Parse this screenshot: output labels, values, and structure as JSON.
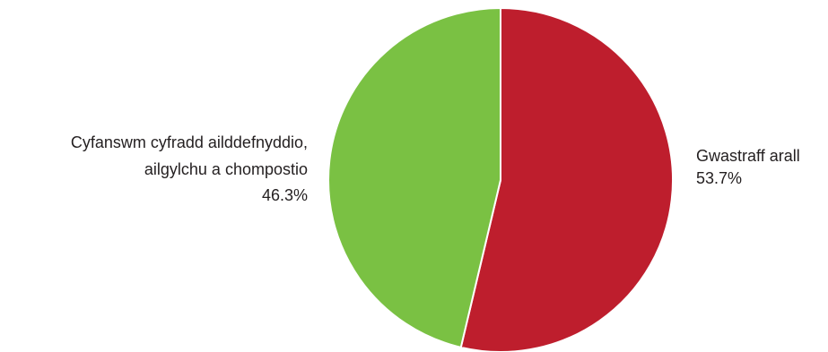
{
  "chart_data": {
    "type": "pie",
    "slices": [
      {
        "label": "Gwastraff arall",
        "value": 53.7,
        "value_label": "53.7%",
        "color": "#be1e2d"
      },
      {
        "label_lines": [
          "Cyfanswm cyfradd ailddefnyddio,",
          "ailgylchu a chompostio"
        ],
        "value": 46.3,
        "value_label": "46.3%",
        "color": "#7ac143"
      }
    ],
    "start": "12 o'clock",
    "direction": "clockwise",
    "legend": "none (direct labels beside slices)"
  }
}
